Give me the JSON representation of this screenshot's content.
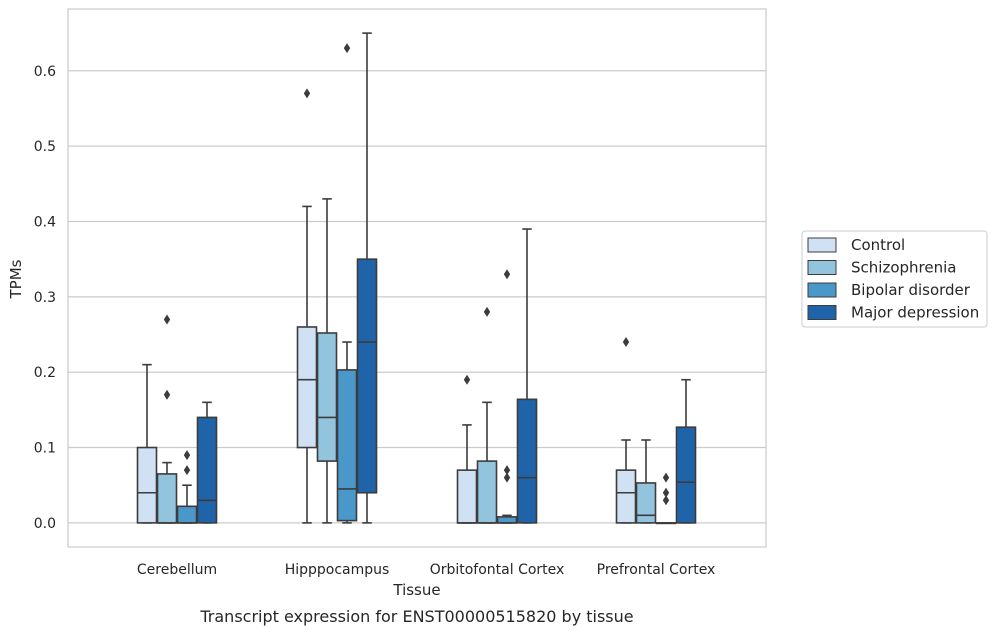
{
  "chart_data": {
    "type": "boxplot",
    "xlabel": "Tissue",
    "ylabel": "TPMs",
    "caption": "Transcript expression for ENST00000515820 by tissue",
    "ylim": [
      -0.032,
      0.682
    ],
    "yticks": [
      0.0,
      0.1,
      0.2,
      0.3,
      0.4,
      0.5,
      0.6
    ],
    "ytick_labels": [
      "0.0",
      "0.1",
      "0.2",
      "0.3",
      "0.4",
      "0.5",
      "0.6"
    ],
    "grid": "horizontal",
    "legend_position": "right",
    "categories": [
      "Cerebellum",
      "Hipppocampus",
      "Orbitofontal Cortex",
      "Prefrontal Cortex"
    ],
    "series": [
      {
        "name": "Control",
        "color": "#cfe1f2",
        "boxes": [
          {
            "whislo": 0.0,
            "q1": 0.0,
            "med": 0.04,
            "q3": 0.1,
            "whishi": 0.21,
            "fliers": []
          },
          {
            "whislo": 0.0,
            "q1": 0.1,
            "med": 0.19,
            "q3": 0.26,
            "whishi": 0.42,
            "fliers": [
              0.57
            ]
          },
          {
            "whislo": 0.0,
            "q1": 0.0,
            "med": 0.0,
            "q3": 0.07,
            "whishi": 0.13,
            "fliers": [
              0.19
            ]
          },
          {
            "whislo": 0.0,
            "q1": 0.0,
            "med": 0.04,
            "q3": 0.07,
            "whishi": 0.11,
            "fliers": [
              0.24
            ]
          }
        ]
      },
      {
        "name": "Schizophrenia",
        "color": "#93c4de",
        "boxes": [
          {
            "whislo": 0.0,
            "q1": 0.0,
            "med": 0.0,
            "q3": 0.065,
            "whishi": 0.08,
            "fliers": [
              0.17,
              0.27
            ]
          },
          {
            "whislo": 0.0,
            "q1": 0.082,
            "med": 0.14,
            "q3": 0.252,
            "whishi": 0.43,
            "fliers": []
          },
          {
            "whislo": 0.0,
            "q1": 0.0,
            "med": 0.0,
            "q3": 0.082,
            "whishi": 0.16,
            "fliers": [
              0.28
            ]
          },
          {
            "whislo": 0.0,
            "q1": 0.0,
            "med": 0.01,
            "q3": 0.053,
            "whishi": 0.11,
            "fliers": []
          }
        ]
      },
      {
        "name": "Bipolar disorder",
        "color": "#4a98c9",
        "boxes": [
          {
            "whislo": 0.0,
            "q1": 0.0,
            "med": 0.0,
            "q3": 0.022,
            "whishi": 0.05,
            "fliers": [
              0.07,
              0.09
            ]
          },
          {
            "whislo": 0.0,
            "q1": 0.003,
            "med": 0.045,
            "q3": 0.203,
            "whishi": 0.24,
            "fliers": [
              0.63
            ]
          },
          {
            "whislo": 0.0,
            "q1": 0.0,
            "med": 0.0,
            "q3": 0.008,
            "whishi": 0.01,
            "fliers": [
              0.06,
              0.07,
              0.33
            ]
          },
          {
            "whislo": 0.0,
            "q1": 0.0,
            "med": 0.0,
            "q3": 0.0,
            "whishi": 0.0,
            "fliers": [
              0.03,
              0.04,
              0.06
            ]
          }
        ]
      },
      {
        "name": "Major depression",
        "color": "#1f63a8",
        "boxes": [
          {
            "whislo": 0.0,
            "q1": 0.0,
            "med": 0.03,
            "q3": 0.14,
            "whishi": 0.16,
            "fliers": []
          },
          {
            "whislo": 0.0,
            "q1": 0.04,
            "med": 0.24,
            "q3": 0.35,
            "whishi": 0.65,
            "fliers": []
          },
          {
            "whislo": 0.0,
            "q1": 0.0,
            "med": 0.06,
            "q3": 0.164,
            "whishi": 0.39,
            "fliers": []
          },
          {
            "whislo": 0.0,
            "q1": 0.0,
            "med": 0.054,
            "q3": 0.127,
            "whishi": 0.19,
            "fliers": []
          }
        ]
      }
    ]
  }
}
